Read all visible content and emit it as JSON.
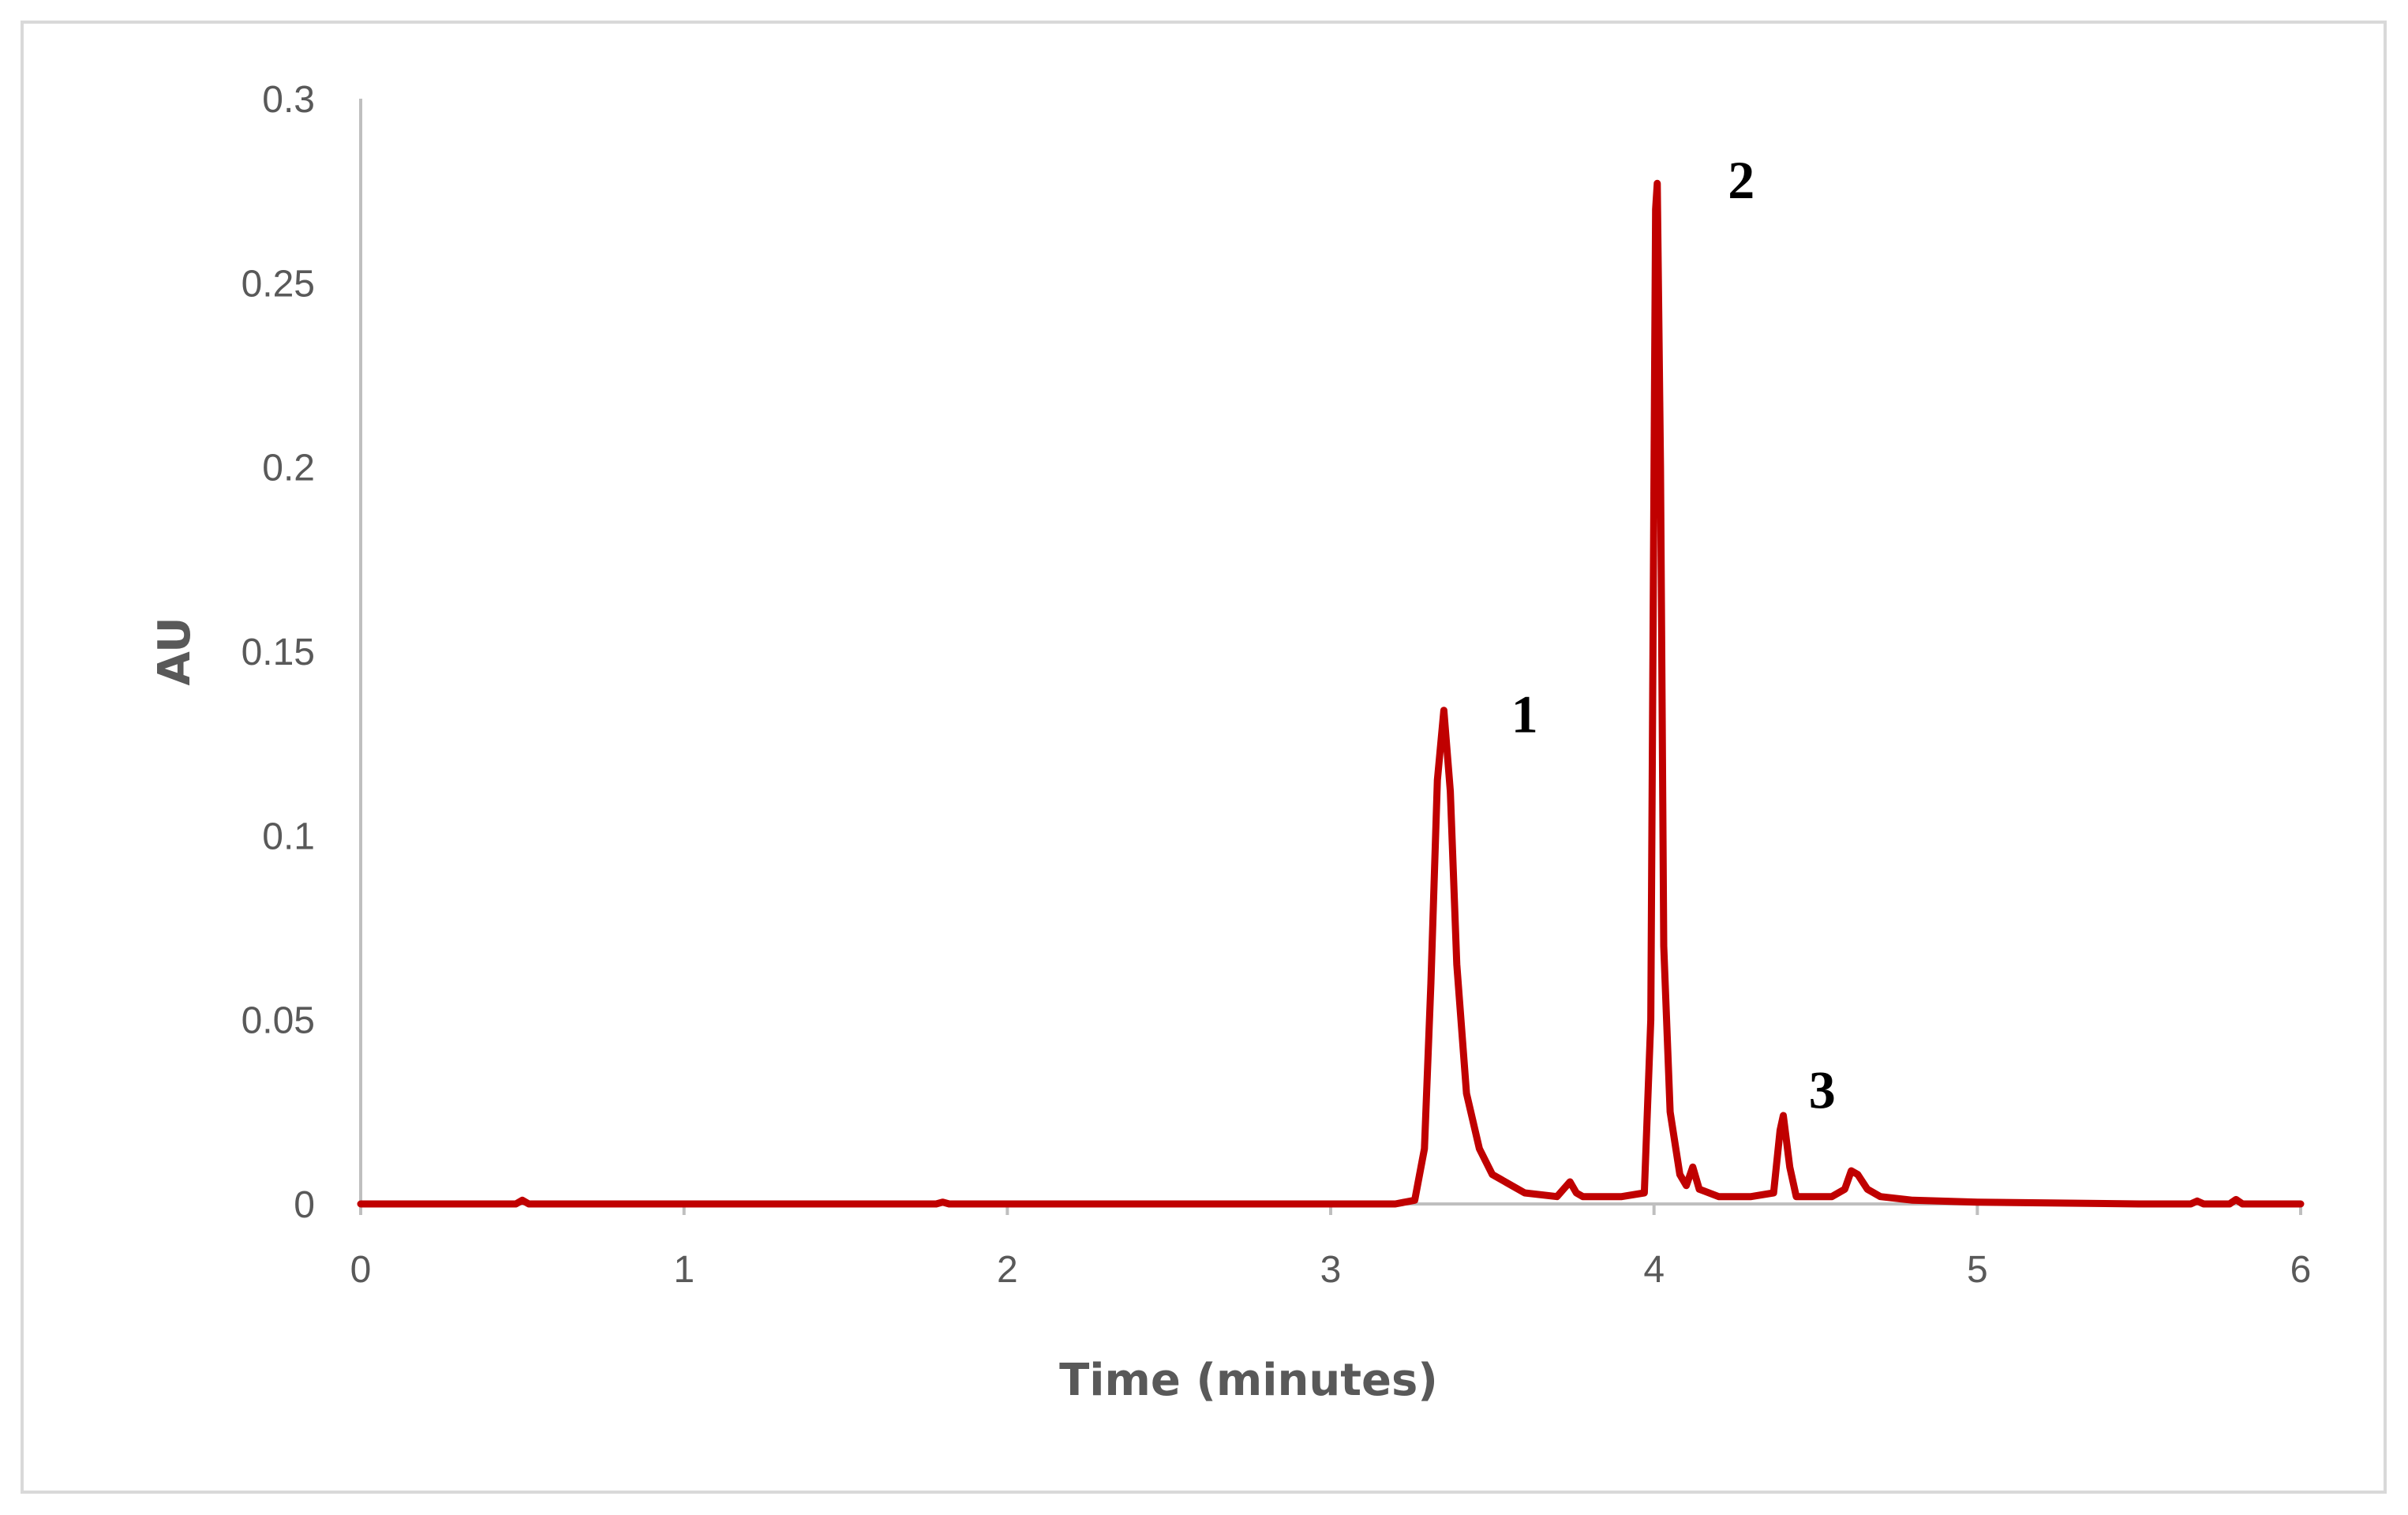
{
  "chart_data": {
    "type": "line",
    "title": "",
    "xlabel": "Time (minutes)",
    "ylabel": "AU",
    "xlim": [
      0,
      6
    ],
    "ylim": [
      0,
      0.3
    ],
    "x_ticks": [
      0,
      1,
      2,
      3,
      4,
      5,
      6
    ],
    "x_tick_labels": [
      "0",
      "1",
      "2",
      "3",
      "4",
      "5",
      "6"
    ],
    "y_ticks": [
      0,
      0.05,
      0.1,
      0.15,
      0.2,
      0.25,
      0.3
    ],
    "y_tick_labels": [
      "0",
      "0.05",
      "0.1",
      "0.15",
      "0.2",
      "0.25",
      "0.3"
    ],
    "grid": false,
    "legend": "none",
    "line_color": "#c00000",
    "series": [
      {
        "points": [
          [
            0,
            0
          ],
          [
            0.48,
            0
          ],
          [
            0.5,
            0.001
          ],
          [
            0.52,
            0
          ],
          [
            1.78,
            0
          ],
          [
            1.8,
            0.0005
          ],
          [
            1.82,
            0
          ],
          [
            3.0,
            0
          ],
          [
            3.2,
            0
          ],
          [
            3.26,
            0.001
          ],
          [
            3.29,
            0.015
          ],
          [
            3.31,
            0.06
          ],
          [
            3.33,
            0.115
          ],
          [
            3.35,
            0.134
          ],
          [
            3.37,
            0.112
          ],
          [
            3.39,
            0.065
          ],
          [
            3.42,
            0.03
          ],
          [
            3.46,
            0.015
          ],
          [
            3.5,
            0.008
          ],
          [
            3.6,
            0.003
          ],
          [
            3.7,
            0.002
          ],
          [
            3.72,
            0.004
          ],
          [
            3.74,
            0.006
          ],
          [
            3.76,
            0.003
          ],
          [
            3.78,
            0.002
          ],
          [
            3.9,
            0.002
          ],
          [
            3.97,
            0.003
          ],
          [
            3.99,
            0.05
          ],
          [
            4.0,
            0.2
          ],
          [
            4.005,
            0.27
          ],
          [
            4.01,
            0.277
          ],
          [
            4.02,
            0.2
          ],
          [
            4.03,
            0.07
          ],
          [
            4.05,
            0.025
          ],
          [
            4.08,
            0.008
          ],
          [
            4.1,
            0.005
          ],
          [
            4.12,
            0.01
          ],
          [
            4.14,
            0.004
          ],
          [
            4.2,
            0.002
          ],
          [
            4.3,
            0.002
          ],
          [
            4.37,
            0.003
          ],
          [
            4.39,
            0.02
          ],
          [
            4.4,
            0.024
          ],
          [
            4.42,
            0.01
          ],
          [
            4.44,
            0.002
          ],
          [
            4.55,
            0.002
          ],
          [
            4.59,
            0.004
          ],
          [
            4.61,
            0.009
          ],
          [
            4.63,
            0.008
          ],
          [
            4.66,
            0.004
          ],
          [
            4.7,
            0.002
          ],
          [
            4.8,
            0.001
          ],
          [
            5.0,
            0.0005
          ],
          [
            5.5,
            0
          ],
          [
            5.66,
            0
          ],
          [
            5.68,
            0.0008
          ],
          [
            5.7,
            0
          ],
          [
            5.78,
            0
          ],
          [
            5.8,
            0.0012
          ],
          [
            5.82,
            0
          ],
          [
            6.0,
            0
          ]
        ]
      }
    ],
    "annotations": [
      {
        "text": "1",
        "x": 3.6,
        "y": 0.128
      },
      {
        "text": "2",
        "x": 4.27,
        "y": 0.273
      },
      {
        "text": "3",
        "x": 4.52,
        "y": 0.026
      }
    ]
  }
}
